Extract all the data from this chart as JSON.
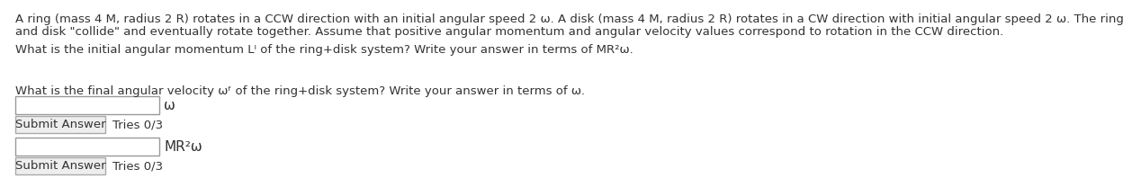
{
  "bg_color": "#ffffff",
  "text_color": "#333333",
  "font_size_body": 9.5,
  "font_size_unit": 11,
  "font_size_button": 9.5,
  "description_line1": "A ring (mass 4 M, radius 2 R) rotates in a CCW direction with an initial angular speed 2 ω. A disk (mass 4 M, radius 2 R) rotates in a CW direction with initial angular speed 2 ω. The ring",
  "description_line2": "and disk \"collide\" and eventually rotate together. Assume that positive angular momentum and angular velocity values correspond to rotation in the CCW direction.",
  "q1_text": "What is the initial angular momentum Lᴵ of the ring+disk system? Write your answer in terms of MR²ω.",
  "q1_unit": "MR²ω",
  "q1_button": "Submit Answer",
  "q1_tries": "Tries 0/3",
  "q2_text": "What is the final angular velocity ωᶠ of the ring+disk system? Write your answer in terms of ω.",
  "q2_unit": "ω",
  "q2_button": "Submit Answer",
  "q2_tries": "Tries 0/3"
}
